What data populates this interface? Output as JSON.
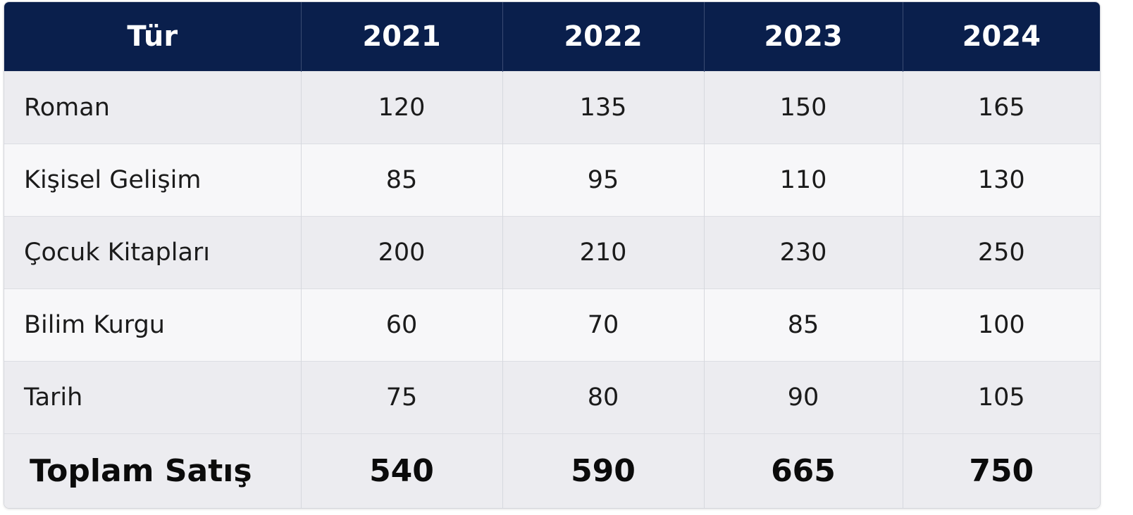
{
  "table": {
    "header": [
      "Tür",
      "2021",
      "2022",
      "2023",
      "2024"
    ],
    "rows": [
      [
        "Roman",
        120,
        135,
        150,
        165
      ],
      [
        "Kişisel Gelişim",
        85,
        95,
        110,
        130
      ],
      [
        "Çocuk Kitapları",
        200,
        210,
        230,
        250
      ],
      [
        "Bilim Kurgu",
        60,
        70,
        85,
        100
      ],
      [
        "Tarih",
        75,
        80,
        90,
        105
      ]
    ],
    "total": [
      "Toplam Satış",
      540,
      590,
      665,
      750
    ]
  }
}
